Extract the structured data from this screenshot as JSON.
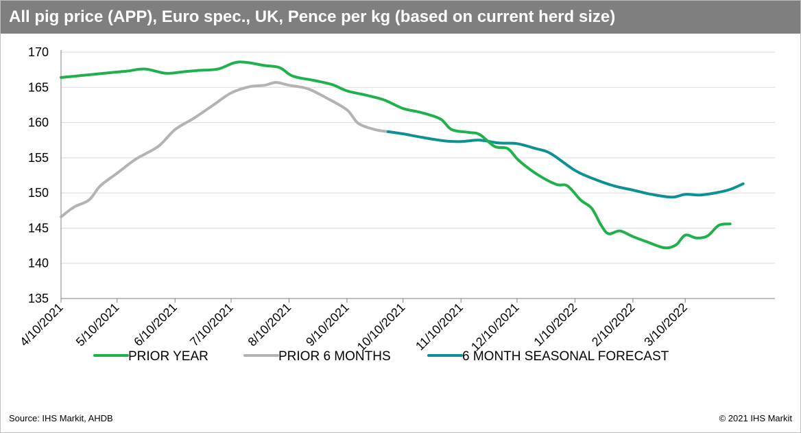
{
  "header": {
    "title": "All pig price (APP), Euro spec., UK, Pence per kg (based on current herd size)"
  },
  "footer": {
    "source": "Source: IHS Markit, AHDB",
    "copyright": "© 2021 IHS Markit"
  },
  "colors": {
    "title_bar": "#7f7f7f",
    "prior_year": "#1fb14c",
    "prior_6_months": "#b3b3b3",
    "forecast": "#0e9194",
    "grid": "#d9d9d9"
  },
  "chart_data": {
    "type": "line",
    "title": "All pig price (APP), Euro spec., UK, Pence per kg (based on current herd size)",
    "xlabel": "",
    "ylabel": "",
    "ylim": [
      135,
      170
    ],
    "yticks": [
      135,
      140,
      145,
      150,
      155,
      160,
      165,
      170
    ],
    "grid": true,
    "legend_position": "bottom",
    "x_axis_type": "date",
    "xlim": [
      "4/10/2021",
      "4/27/2022"
    ],
    "xticks": [
      "4/10/2021",
      "5/10/2021",
      "6/10/2021",
      "7/10/2021",
      "8/10/2021",
      "9/10/2021",
      "10/10/2021",
      "11/10/2021",
      "12/10/2021",
      "1/10/2022",
      "2/10/2022",
      "3/10/2022"
    ],
    "series": [
      {
        "name": "PRIOR YEAR",
        "color": "#1fb14c",
        "points": [
          [
            "4/10/2021",
            166.4
          ],
          [
            "4/22/2021",
            166.7
          ],
          [
            "5/3/2021",
            167.0
          ],
          [
            "5/15/2021",
            167.3
          ],
          [
            "5/25/2021",
            167.6
          ],
          [
            "6/5/2021",
            167.0
          ],
          [
            "6/14/2021",
            167.2
          ],
          [
            "6/22/2021",
            167.4
          ],
          [
            "7/3/2021",
            167.6
          ],
          [
            "7/14/2021",
            168.6
          ],
          [
            "7/28/2021",
            168.1
          ],
          [
            "8/5/2021",
            167.8
          ],
          [
            "8/12/2021",
            166.6
          ],
          [
            "8/23/2021",
            166.0
          ],
          [
            "9/2/2021",
            165.4
          ],
          [
            "9/10/2021",
            164.5
          ],
          [
            "9/20/2021",
            163.9
          ],
          [
            "9/30/2021",
            163.2
          ],
          [
            "10/10/2021",
            162.0
          ],
          [
            "10/20/2021",
            161.4
          ],
          [
            "10/30/2021",
            160.5
          ],
          [
            "11/5/2021",
            159.0
          ],
          [
            "11/14/2021",
            158.6
          ],
          [
            "11/20/2021",
            158.3
          ],
          [
            "11/28/2021",
            156.6
          ],
          [
            "12/5/2021",
            156.3
          ],
          [
            "12/11/2021",
            154.6
          ],
          [
            "12/21/2021",
            152.6
          ],
          [
            "12/31/2021",
            151.2
          ],
          [
            "1/6/2022",
            151.0
          ],
          [
            "1/13/2022",
            149.0
          ],
          [
            "1/19/2022",
            147.8
          ],
          [
            "1/24/2022",
            145.4
          ],
          [
            "1/28/2022",
            144.2
          ],
          [
            "2/3/2022",
            144.6
          ],
          [
            "2/10/2022",
            143.8
          ],
          [
            "2/18/2022",
            143.0
          ],
          [
            "2/27/2022",
            142.2
          ],
          [
            "3/5/2022",
            142.6
          ],
          [
            "3/10/2022",
            144.0
          ],
          [
            "3/16/2022",
            143.6
          ],
          [
            "3/22/2022",
            143.9
          ],
          [
            "3/28/2022",
            145.4
          ],
          [
            "4/3/2022",
            145.6
          ]
        ]
      },
      {
        "name": "PRIOR 6 MONTHS",
        "color": "#b3b3b3",
        "points": [
          [
            "4/10/2021",
            146.6
          ],
          [
            "4/17/2021",
            148.0
          ],
          [
            "4/25/2021",
            149.0
          ],
          [
            "5/1/2021",
            151.0
          ],
          [
            "5/10/2021",
            152.8
          ],
          [
            "5/20/2021",
            154.8
          ],
          [
            "6/1/2021",
            156.6
          ],
          [
            "6/10/2021",
            159.0
          ],
          [
            "6/20/2021",
            160.6
          ],
          [
            "6/30/2021",
            162.4
          ],
          [
            "7/10/2021",
            164.2
          ],
          [
            "7/20/2021",
            165.1
          ],
          [
            "7/28/2021",
            165.3
          ],
          [
            "8/3/2021",
            165.7
          ],
          [
            "8/10/2021",
            165.3
          ],
          [
            "8/20/2021",
            164.8
          ],
          [
            "8/30/2021",
            163.5
          ],
          [
            "9/10/2021",
            161.8
          ],
          [
            "9/16/2021",
            159.9
          ],
          [
            "9/25/2021",
            159.0
          ],
          [
            "10/2/2021",
            158.7
          ]
        ]
      },
      {
        "name": "6 MONTH SEASONAL FORECAST",
        "color": "#0e9194",
        "points": [
          [
            "10/2/2021",
            158.7
          ],
          [
            "10/10/2021",
            158.4
          ],
          [
            "10/20/2021",
            157.9
          ],
          [
            "11/1/2021",
            157.4
          ],
          [
            "11/10/2021",
            157.3
          ],
          [
            "11/20/2021",
            157.5
          ],
          [
            "11/30/2021",
            157.1
          ],
          [
            "12/10/2021",
            157.0
          ],
          [
            "12/20/2021",
            156.3
          ],
          [
            "12/28/2021",
            155.6
          ],
          [
            "1/10/2022",
            153.2
          ],
          [
            "1/20/2022",
            152.0
          ],
          [
            "1/31/2022",
            151.0
          ],
          [
            "2/10/2022",
            150.4
          ],
          [
            "2/20/2022",
            149.8
          ],
          [
            "3/3/2022",
            149.4
          ],
          [
            "3/10/2022",
            149.8
          ],
          [
            "3/18/2022",
            149.7
          ],
          [
            "3/28/2022",
            150.1
          ],
          [
            "4/3/2022",
            150.5
          ],
          [
            "4/10/2022",
            151.3
          ]
        ]
      }
    ]
  }
}
